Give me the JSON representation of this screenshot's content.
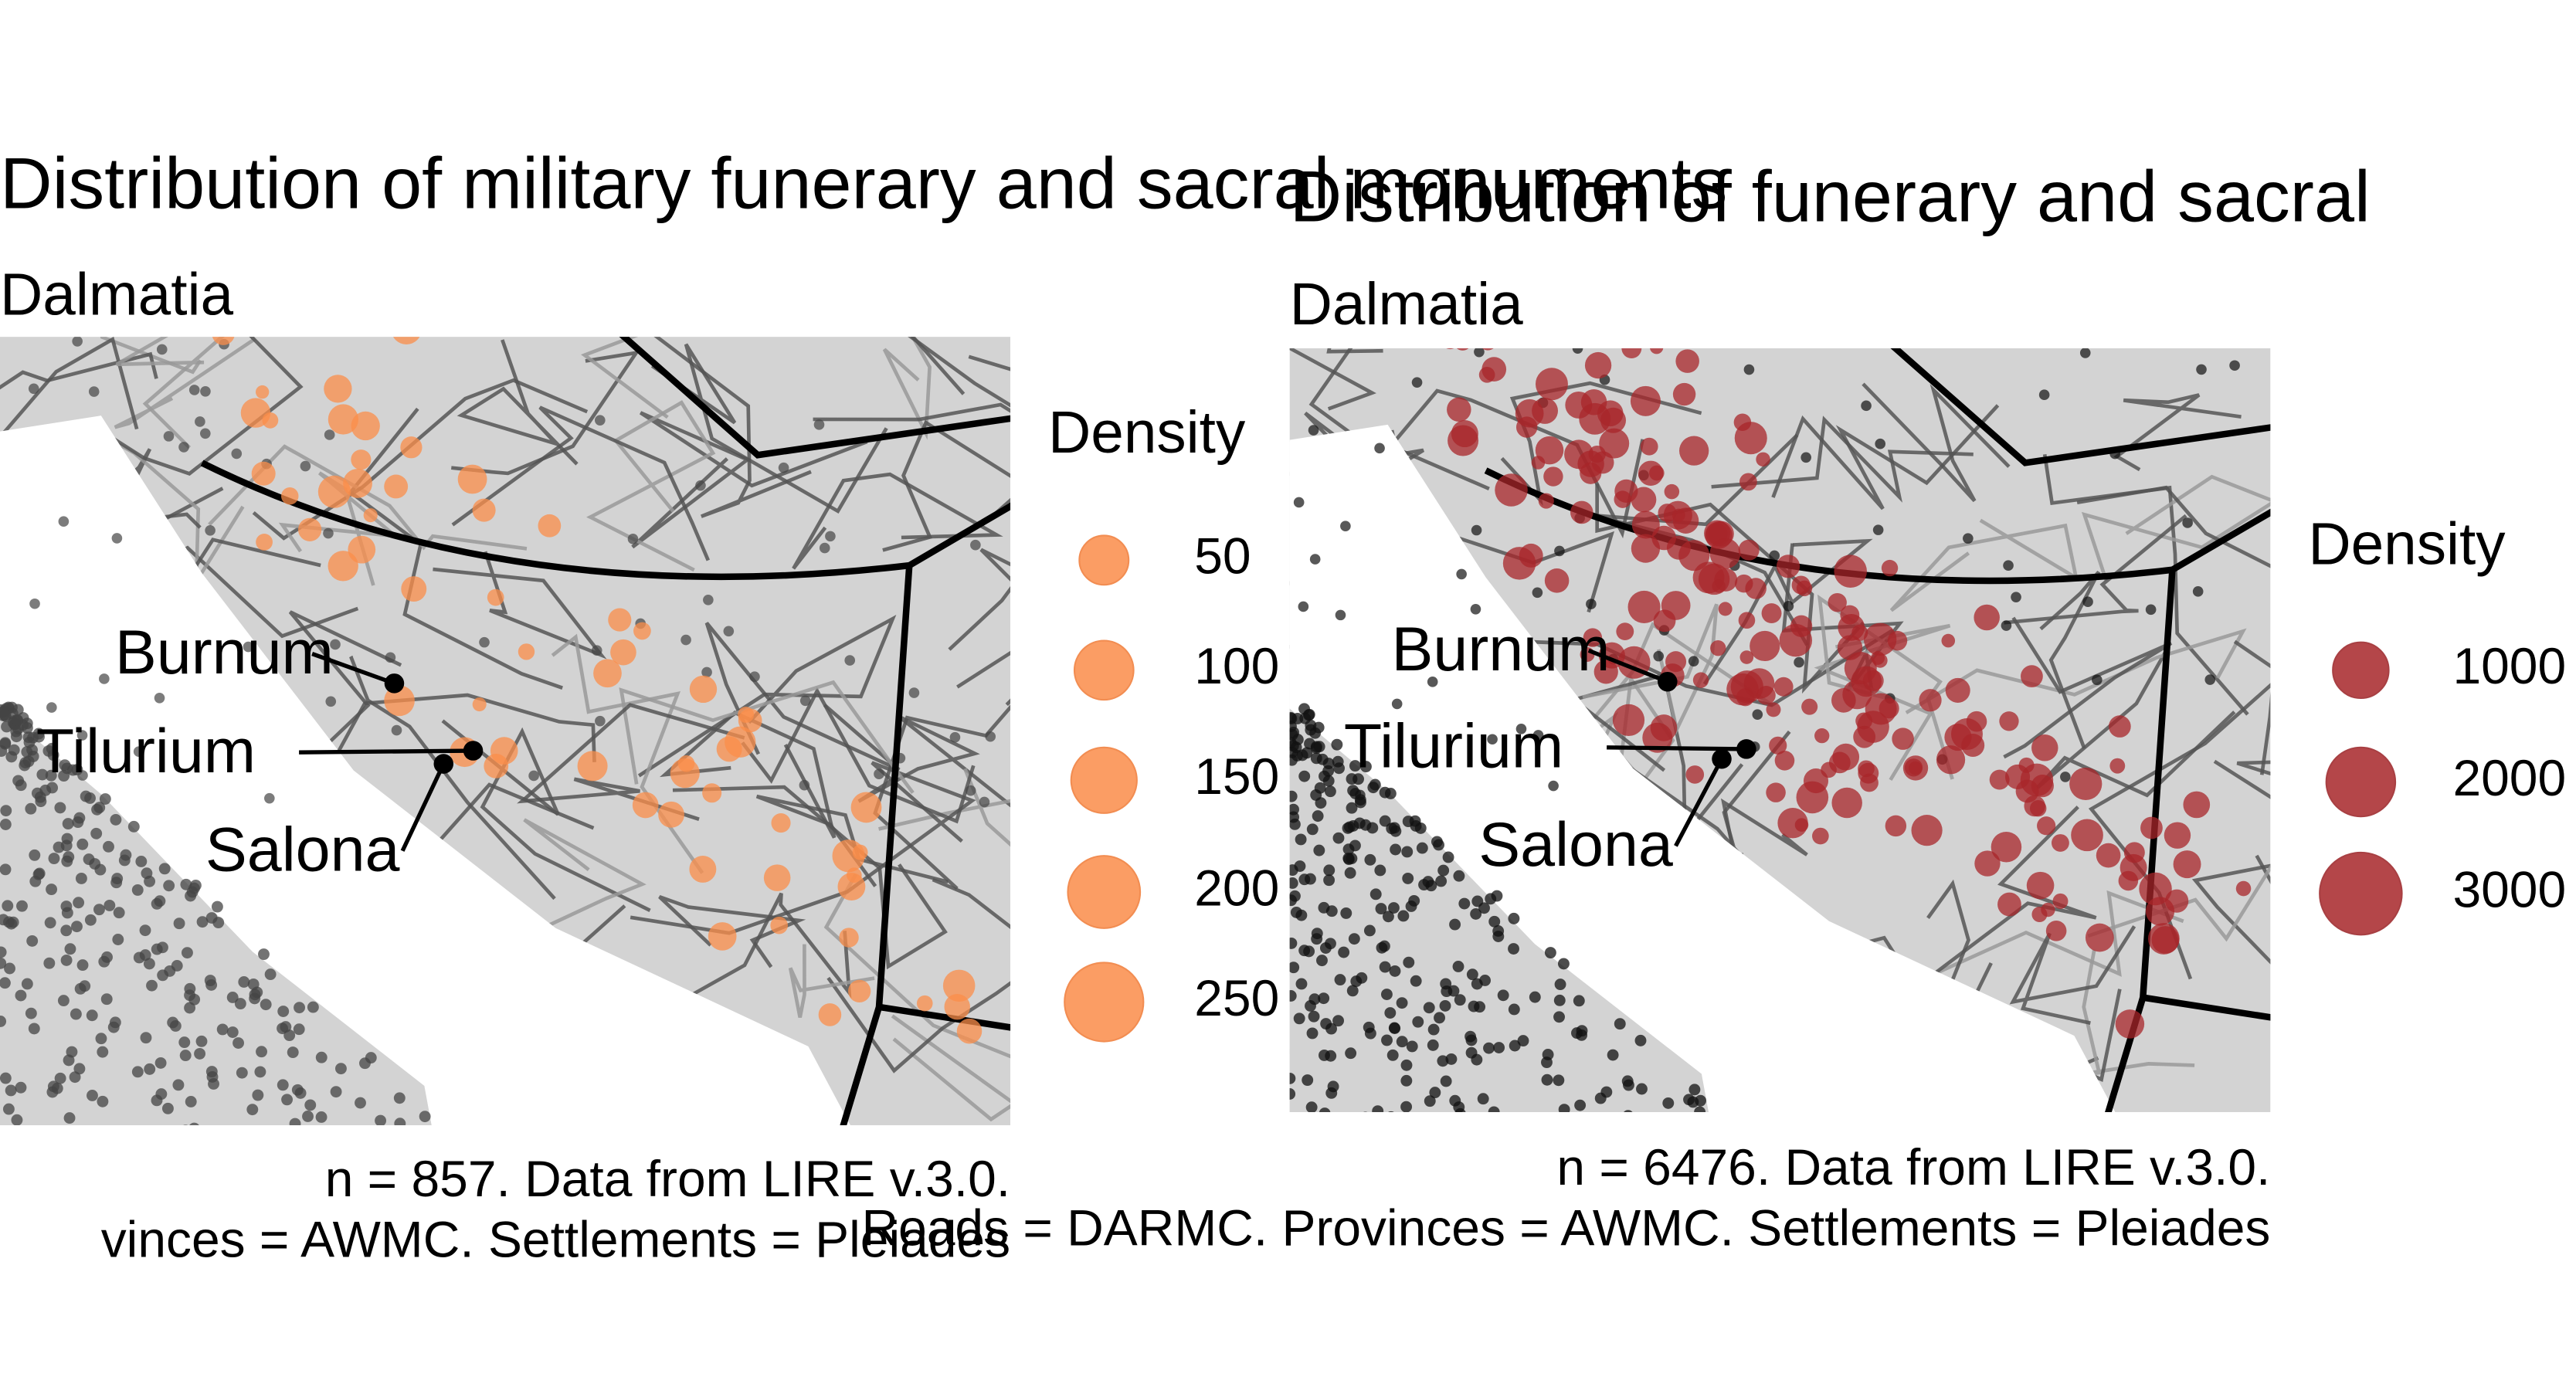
{
  "panels": [
    {
      "title": "Distribution of military funerary and sacral monuments",
      "subtitle": "Dalmatia",
      "legend_title": "Density",
      "legend_values": [
        50,
        100,
        150,
        200,
        250
      ],
      "places": [
        "Burnum",
        "Tilurium",
        "Salona"
      ],
      "caption": [
        "n = 857. Data from LIRE v.3.0.",
        "vinces = AWMC. Settlements = Pleiades"
      ]
    },
    {
      "title": "Distribution of funerary and sacral",
      "subtitle": "Dalmatia",
      "legend_title": "Density",
      "legend_values": [
        1000,
        2000,
        3000
      ],
      "places": [
        "Burnum",
        "Tilurium",
        "Salona"
      ],
      "caption": [
        "n = 6476. Data from LIRE v.3.0.",
        "Roads = DARMC. Provinces = AWMC. Settlements = Pleiades"
      ]
    }
  ]
}
